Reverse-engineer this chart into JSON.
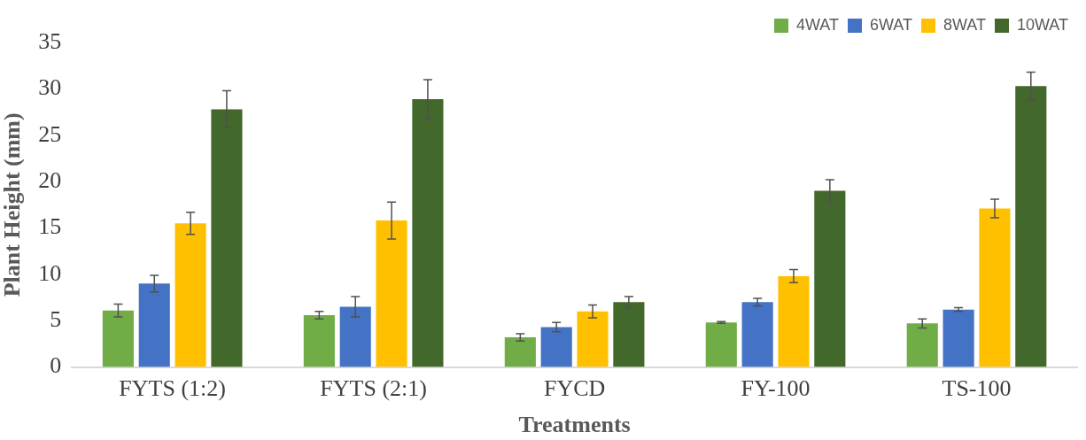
{
  "chart_data": {
    "type": "bar",
    "xlabel": "Treatments",
    "ylabel": "Plant Height (mm)",
    "categories": [
      "FYTS (1:2)",
      "FYTS (2:1)",
      "FYCD",
      "FY-100",
      "TS-100"
    ],
    "series": [
      {
        "name": "4WAT",
        "color": "#70ad47",
        "values": [
          6.1,
          5.6,
          3.2,
          4.8,
          4.7
        ],
        "errors": [
          0.7,
          0.4,
          0.4,
          0.1,
          0.5
        ]
      },
      {
        "name": "6WAT",
        "color": "#4472c4",
        "values": [
          9.0,
          6.5,
          4.3,
          7.0,
          6.2
        ],
        "errors": [
          0.9,
          1.1,
          0.5,
          0.4,
          0.2
        ]
      },
      {
        "name": "8WAT",
        "color": "#ffc000",
        "values": [
          15.5,
          15.8,
          6.0,
          9.8,
          17.1
        ],
        "errors": [
          1.2,
          2.0,
          0.7,
          0.7,
          1.0
        ]
      },
      {
        "name": "10WAT",
        "color": "#43682b",
        "values": [
          27.8,
          28.9,
          7.0,
          19.0,
          30.3
        ],
        "errors": [
          2.0,
          2.1,
          0.6,
          1.2,
          1.5
        ]
      }
    ],
    "ylim": [
      0,
      35
    ],
    "yticks": [
      0,
      5,
      10,
      15,
      20,
      25,
      30,
      35
    ],
    "grid": false,
    "legend": "top right"
  }
}
